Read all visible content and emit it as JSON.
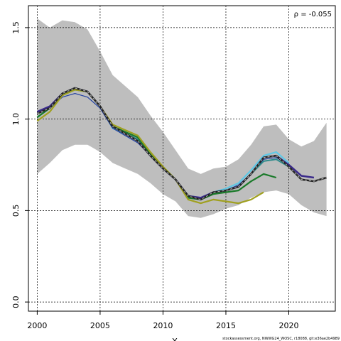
{
  "chart_data": {
    "type": "line",
    "xlabel": "Y",
    "ylabel": "",
    "xlim": [
      1999.3,
      2023.7
    ],
    "ylim": [
      -0.05,
      1.62
    ],
    "x_ticks": [
      2000,
      2005,
      2010,
      2015,
      2020
    ],
    "y_ticks": [
      0.0,
      0.5,
      1.0,
      1.5
    ],
    "y_tick_labels": [
      "0.0",
      "0.5",
      "1.0",
      "1.5"
    ],
    "grid": true,
    "annotation": "ρ = -0.055",
    "footer": "stockassessment.org, NWWG24_WOSC, r18088, git:e36ae2b4989",
    "band": {
      "x": [
        2000,
        2001,
        2002,
        2003,
        2004,
        2005,
        2006,
        2007,
        2008,
        2009,
        2010,
        2011,
        2012,
        2013,
        2014,
        2015,
        2016,
        2017,
        2018,
        2019,
        2020,
        2021,
        2022,
        2023
      ],
      "upper": [
        1.55,
        1.5,
        1.54,
        1.53,
        1.49,
        1.37,
        1.24,
        1.18,
        1.12,
        1.02,
        0.93,
        0.83,
        0.73,
        0.7,
        0.73,
        0.74,
        0.78,
        0.86,
        0.96,
        0.97,
        0.89,
        0.85,
        0.88,
        0.98
      ],
      "lower": [
        0.7,
        0.76,
        0.83,
        0.86,
        0.86,
        0.82,
        0.76,
        0.73,
        0.7,
        0.65,
        0.59,
        0.55,
        0.47,
        0.46,
        0.48,
        0.51,
        0.53,
        0.57,
        0.6,
        0.61,
        0.59,
        0.53,
        0.49,
        0.47
      ]
    },
    "series": [
      {
        "color": "#5ec8e6",
        "width": 2.2,
        "x": [
          2000,
          2001,
          2002,
          2003,
          2004,
          2005,
          2006,
          2007,
          2008,
          2009,
          2010,
          2011,
          2012,
          2013,
          2014,
          2015,
          2016,
          2017,
          2018,
          2019,
          2020
        ],
        "values": [
          1.01,
          1.06,
          1.13,
          1.16,
          1.15,
          1.07,
          0.95,
          0.92,
          0.88,
          0.8,
          0.73,
          0.67,
          0.58,
          0.57,
          0.6,
          0.62,
          0.65,
          0.72,
          0.8,
          0.82,
          0.76
        ]
      },
      {
        "color": "#1f3fa0",
        "width": 1.2,
        "x": [
          2000,
          2001,
          2002,
          2003,
          2004,
          2005,
          2006,
          2007,
          2008,
          2009,
          2010,
          2011,
          2012,
          2013,
          2014,
          2015,
          2016,
          2017,
          2018,
          2019,
          2020
        ],
        "values": [
          1.03,
          1.06,
          1.12,
          1.14,
          1.12,
          1.06,
          0.95,
          0.91,
          0.87,
          0.8,
          0.73,
          0.67,
          0.57,
          0.56,
          0.6,
          0.61,
          0.64,
          0.7,
          0.78,
          0.79,
          0.75
        ]
      },
      {
        "color": "#3a2a8a",
        "width": 2.5,
        "x": [
          2000,
          2001,
          2002,
          2003,
          2004,
          2005,
          2006,
          2007,
          2008,
          2009,
          2010,
          2011,
          2012,
          2013,
          2014,
          2015,
          2016,
          2017,
          2018,
          2019,
          2020,
          2021,
          2022
        ],
        "values": [
          1.04,
          1.07,
          1.14,
          1.17,
          1.15,
          1.07,
          0.96,
          0.92,
          0.88,
          0.8,
          0.73,
          0.67,
          0.58,
          0.57,
          0.6,
          0.61,
          0.63,
          0.7,
          0.79,
          0.8,
          0.75,
          0.69,
          0.68
        ]
      },
      {
        "color": "#2e8b8b",
        "width": 2.0,
        "x": [
          2000,
          2001,
          2002,
          2003,
          2004,
          2005,
          2006,
          2007,
          2008,
          2009,
          2010,
          2011,
          2012,
          2013,
          2014,
          2015,
          2016,
          2017,
          2018,
          2019,
          2020
        ],
        "values": [
          1.01,
          1.06,
          1.14,
          1.16,
          1.15,
          1.07,
          0.96,
          0.92,
          0.89,
          0.8,
          0.73,
          0.67,
          0.57,
          0.56,
          0.6,
          0.61,
          0.63,
          0.7,
          0.77,
          0.78,
          0.74
        ]
      },
      {
        "color": "#1a7a2a",
        "width": 2.2,
        "x": [
          2000,
          2001,
          2002,
          2003,
          2004,
          2005,
          2006,
          2007,
          2008,
          2009,
          2010,
          2011,
          2012,
          2013,
          2014,
          2015,
          2016,
          2017,
          2018,
          2019
        ],
        "values": [
          1.01,
          1.06,
          1.14,
          1.17,
          1.15,
          1.07,
          0.96,
          0.93,
          0.9,
          0.81,
          0.74,
          0.67,
          0.57,
          0.56,
          0.59,
          0.6,
          0.61,
          0.66,
          0.7,
          0.68
        ]
      },
      {
        "color": "#a0a020",
        "width": 2.2,
        "x": [
          2000,
          2001,
          2002,
          2003,
          2004,
          2005,
          2006,
          2007,
          2008,
          2009,
          2010,
          2011,
          2012,
          2013,
          2014,
          2015,
          2016,
          2017,
          2018
        ],
        "values": [
          0.99,
          1.04,
          1.13,
          1.16,
          1.15,
          1.07,
          0.97,
          0.94,
          0.91,
          0.82,
          0.74,
          0.67,
          0.56,
          0.54,
          0.56,
          0.55,
          0.54,
          0.56,
          0.6
        ]
      },
      {
        "color": "#222222",
        "width": 2.5,
        "dashed": true,
        "x": [
          2000,
          2001,
          2002,
          2003,
          2004,
          2005,
          2006,
          2007,
          2008,
          2009,
          2010,
          2011,
          2012,
          2013,
          2014,
          2015,
          2016,
          2017,
          2018,
          2019,
          2020,
          2021,
          2022,
          2023
        ],
        "values": [
          1.03,
          1.06,
          1.14,
          1.17,
          1.15,
          1.07,
          0.96,
          0.92,
          0.88,
          0.8,
          0.73,
          0.67,
          0.58,
          0.56,
          0.6,
          0.61,
          0.63,
          0.7,
          0.79,
          0.8,
          0.74,
          0.67,
          0.66,
          0.68
        ]
      }
    ]
  }
}
